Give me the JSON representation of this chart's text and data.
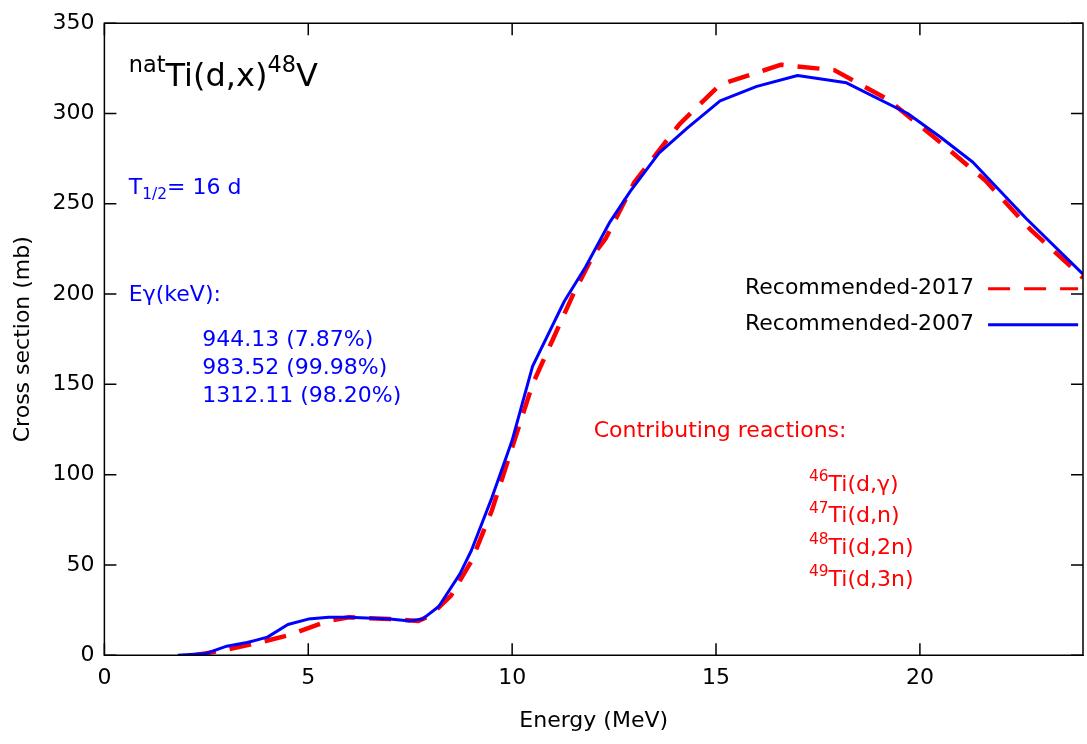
{
  "chart_data": {
    "type": "line",
    "title": "$^{nat}$Ti(d,x)$^{48}$V",
    "xlabel": "Energy (MeV)",
    "ylabel": "Cross section (mb)",
    "xlim": [
      0,
      24
    ],
    "xticks": [
      0,
      5,
      10,
      15,
      20
    ],
    "ylim": [
      0,
      350
    ],
    "yticks": [
      0,
      50,
      100,
      150,
      200,
      250,
      300,
      350
    ],
    "grid": false,
    "legend": "right",
    "marker": "none",
    "series": [
      {
        "name": "Recommended-2017",
        "color": "#ff0000",
        "line_style": "dashed",
        "x": [
          2.2,
          3,
          3.8,
          4.5,
          5,
          5.5,
          6,
          7,
          7.7,
          8,
          8.5,
          9,
          9.5,
          10,
          10.5,
          11,
          11.5,
          12,
          12.3,
          13,
          14.1,
          15.1,
          16.6,
          17.9,
          19.2,
          20.5,
          21.6,
          22.7,
          24
        ],
        "values": [
          0,
          3,
          7,
          11,
          15,
          19,
          21,
          20,
          19,
          22,
          33,
          52,
          80,
          115,
          150,
          175,
          200,
          222,
          231,
          262,
          294,
          316,
          327,
          324,
          308,
          284,
          263,
          236,
          209
        ]
      },
      {
        "name": "Recommended-2007",
        "color": "#0000ff",
        "line_style": "solid",
        "x": [
          1.8,
          2.5,
          3,
          3.5,
          4,
          4.5,
          5,
          5.5,
          6,
          7,
          7.5,
          7.8,
          8.2,
          8.72,
          9,
          9.5,
          10,
          10.5,
          11.28,
          11.8,
          12.4,
          12.9,
          13.6,
          14.3,
          15.1,
          16,
          17,
          18.2,
          19.7,
          20.5,
          21.3,
          22.6,
          24
        ],
        "values": [
          0,
          1,
          5,
          7,
          10,
          17,
          20,
          21,
          21,
          20,
          19,
          20,
          27,
          45,
          58,
          87,
          119,
          160,
          196,
          215,
          240,
          257,
          278,
          292,
          307,
          315,
          321,
          317,
          300,
          287,
          273,
          242,
          211
        ]
      }
    ],
    "annotations": [
      "T$_{1/2}$= 16 d",
      "Eγ(keV):",
      "944.13 (7.87%)",
      "983.52 (99.98%)",
      "1312.11 (98.20%)",
      "Contributing reactions:",
      "$^{46}$Ti(d,γ)",
      "$^{47}$Ti(d,n)",
      "$^{48}$Ti(d,2n)",
      "$^{49}$Ti(d,3n)"
    ]
  }
}
